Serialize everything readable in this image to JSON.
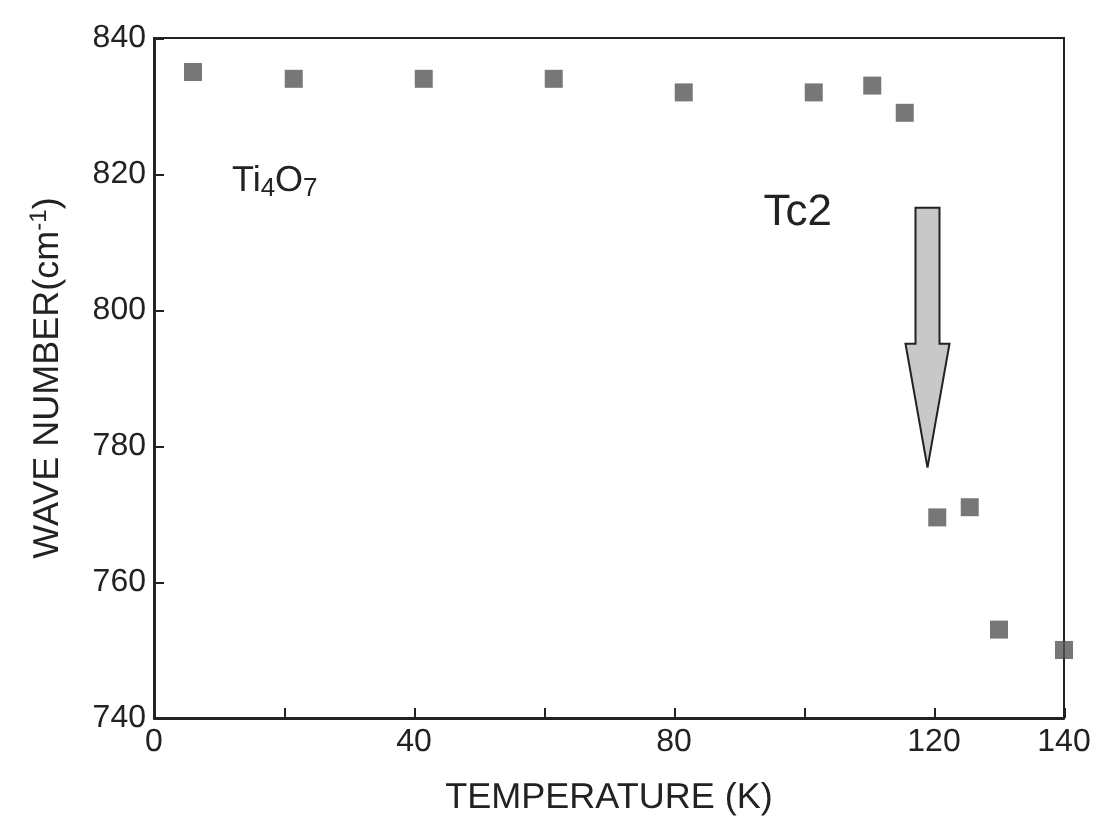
{
  "chart_data": {
    "type": "scatter",
    "xlabel": "TEMPERATURE (K)",
    "ylabel": "WAVE NUMBER(cm$^{-1}$)",
    "x": [
      6,
      21.5,
      41.5,
      61.5,
      81.5,
      101.5,
      110.5,
      115.5,
      120.5,
      125.5,
      130,
      140
    ],
    "series": [
      {
        "color": "#555555",
        "values": [
          835,
          834,
          834,
          834,
          832,
          832,
          833,
          829,
          769.5,
          771,
          753,
          750
        ]
      }
    ],
    "marker": "square",
    "grid": false,
    "xlim": [
      0,
      140
    ],
    "xticks": [
      0,
      {
        "value": 20,
        "label": null
      },
      40,
      {
        "value": 60,
        "label": null
      },
      80,
      {
        "value": 100,
        "label": null
      },
      120,
      140
    ],
    "ylim": [
      740,
      840
    ],
    "yticks": [
      740,
      760,
      780,
      800,
      820,
      840
    ],
    "annotations": [
      "Ti$_{4}$O$_{7}$",
      "Tc2"
    ]
  }
}
